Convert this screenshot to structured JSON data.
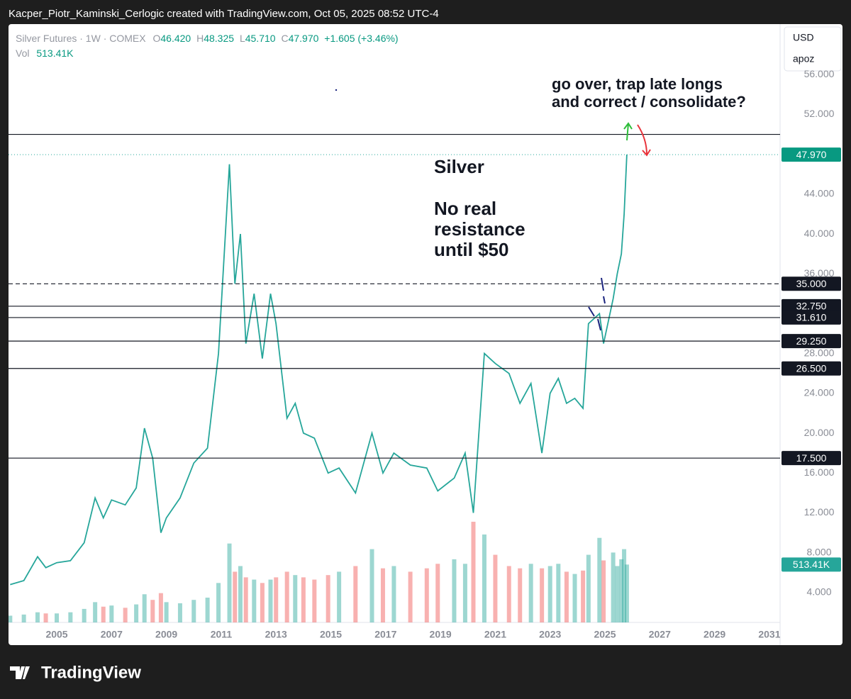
{
  "header": "Kacper_Piotr_Kaminski_Cerlogic created with TradingView.com, Oct 05, 2025 08:52 UTC-4",
  "legend": {
    "symbol": "Silver Futures · 1W · COMEX",
    "o_label": "O",
    "o": "46.420",
    "h_label": "H",
    "h": "48.325",
    "l_label": "L",
    "l": "45.710",
    "c_label": "C",
    "c": "47.970",
    "change": "+1.605 (+3.46%)",
    "vol_label": "Vol",
    "vol": "513.41K"
  },
  "scale_menu": {
    "currency": "USD",
    "mode": "apoz"
  },
  "footer": "TradingView",
  "chart_data": {
    "type": "line",
    "color": "#26a69a",
    "down_color": "#ef5350",
    "x": [
      2003.3,
      2003.8,
      2004.3,
      2004.6,
      2005.0,
      2005.5,
      2006.0,
      2006.4,
      2006.7,
      2007.0,
      2007.5,
      2007.9,
      2008.2,
      2008.5,
      2008.8,
      2009.0,
      2009.5,
      2010.0,
      2010.5,
      2010.9,
      2011.3,
      2011.5,
      2011.7,
      2011.9,
      2012.2,
      2012.5,
      2012.8,
      2013.0,
      2013.4,
      2013.7,
      2014.0,
      2014.4,
      2014.9,
      2015.3,
      2015.9,
      2016.5,
      2016.9,
      2017.3,
      2017.9,
      2018.5,
      2018.9,
      2019.5,
      2019.9,
      2020.2,
      2020.6,
      2021.0,
      2021.5,
      2021.9,
      2022.3,
      2022.7,
      2023.0,
      2023.3,
      2023.6,
      2023.9,
      2024.2,
      2024.4,
      2024.8,
      2024.95,
      2025.3,
      2025.45,
      2025.6,
      2025.7,
      2025.8
    ],
    "values": [
      4.8,
      5.2,
      7.6,
      6.5,
      7.0,
      7.2,
      9.0,
      13.5,
      11.5,
      13.3,
      12.8,
      14.5,
      20.5,
      17.5,
      10,
      11.5,
      13.5,
      17,
      18.5,
      28,
      47,
      35,
      40,
      29,
      34,
      27.5,
      34,
      31,
      21.5,
      23,
      20,
      19.5,
      16,
      16.5,
      14,
      20,
      16,
      18,
      16.8,
      16.5,
      14.2,
      15.5,
      18,
      12,
      28,
      27,
      26,
      23,
      25,
      18,
      24,
      25.5,
      23,
      23.5,
      22.5,
      31,
      32,
      29,
      33.5,
      36,
      38,
      42,
      47.97
    ],
    "volume": [
      60,
      70,
      90,
      80,
      80,
      90,
      120,
      180,
      140,
      150,
      130,
      160,
      250,
      200,
      260,
      180,
      170,
      200,
      220,
      350,
      700,
      450,
      500,
      400,
      380,
      350,
      380,
      400,
      450,
      420,
      400,
      380,
      420,
      450,
      500,
      650,
      480,
      500,
      450,
      480,
      520,
      560,
      520,
      893,
      780,
      600,
      500,
      480,
      520,
      480,
      500,
      520,
      450,
      430,
      460,
      600,
      750,
      550,
      620,
      500,
      560,
      650,
      513.41
    ],
    "xlim": [
      2003.24,
      2031.39
    ],
    "ylim": [
      1,
      61
    ],
    "vol_ylim": [
      0,
      5300
    ],
    "xticks": [
      2005,
      2007,
      2009,
      2011,
      2013,
      2015,
      2017,
      2019,
      2021,
      2023,
      2025,
      2027,
      2029,
      2031
    ],
    "yticks": [
      {
        "value": 4,
        "label": "4.000"
      },
      {
        "value": 8,
        "label": "8.000"
      },
      {
        "value": 12,
        "label": "12.000"
      },
      {
        "value": 16,
        "label": "16.000"
      },
      {
        "value": 20,
        "label": "20.000"
      },
      {
        "value": 24,
        "label": "24.000"
      },
      {
        "value": 28,
        "label": "28.000"
      },
      {
        "value": 36,
        "label": "36.000"
      },
      {
        "value": 40,
        "label": "40.000"
      },
      {
        "value": 44,
        "label": "44.000"
      },
      {
        "value": 52,
        "label": "52.000"
      },
      {
        "value": 56,
        "label": "56.000"
      }
    ],
    "grid": false,
    "resistance": 50,
    "levels": [
      {
        "value": 35,
        "label": "35.000",
        "dashed": true
      },
      {
        "value": 32.75,
        "label": "32.750",
        "dashed": false
      },
      {
        "value": 31.61,
        "label": "31.610",
        "dashed": false
      },
      {
        "value": 29.25,
        "label": "29.250",
        "dashed": false
      },
      {
        "value": 26.5,
        "label": "26.500",
        "dashed": false
      },
      {
        "value": 17.5,
        "label": "17.500",
        "dashed": false
      }
    ],
    "last_price": {
      "value": 47.97,
      "label": "47.970"
    },
    "last_volume": {
      "value": 513.41,
      "label": "513.41K"
    },
    "annotations": {
      "title": "Silver",
      "note": [
        "No real",
        "resistance",
        "until $50"
      ],
      "question": [
        "go over, trap late longs",
        "and correct / consolidate?"
      ]
    }
  }
}
